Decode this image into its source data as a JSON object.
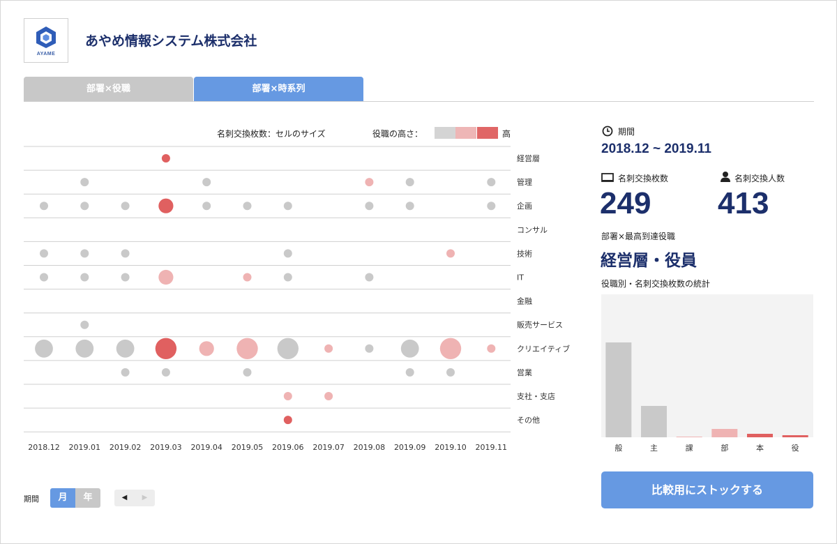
{
  "header": {
    "logo_text": "AYAME",
    "company_name": "あやめ情報システム株式会社"
  },
  "tabs": [
    {
      "label": "部署×役職",
      "active": false
    },
    {
      "label": "部署×時系列",
      "active": true
    }
  ],
  "legend": {
    "size_label": "名刺交換枚数：セルのサイズ",
    "height_label": "役職の高さ：",
    "high_label": "高",
    "colors": [
      "#d4d4d4",
      "#eeb6b6",
      "#e06666"
    ]
  },
  "chart_data": {
    "type": "scatter",
    "x": [
      "2018.12",
      "2019.01",
      "2019.02",
      "2019.03",
      "2019.04",
      "2019.05",
      "2019.06",
      "2019.07",
      "2019.08",
      "2019.09",
      "2019.10",
      "2019.11"
    ],
    "departments": [
      "経営層",
      "管理",
      "企画",
      "コンサル",
      "技術",
      "IT",
      "金融",
      "販売サービス",
      "クリエイティブ",
      "営業",
      "支社・支店",
      "その他"
    ],
    "points": [
      {
        "dept": 0,
        "month": 3,
        "count": 1,
        "level": 3
      },
      {
        "dept": 1,
        "month": 1,
        "count": 1,
        "level": 1
      },
      {
        "dept": 1,
        "month": 4,
        "count": 1,
        "level": 1
      },
      {
        "dept": 1,
        "month": 8,
        "count": 1,
        "level": 2
      },
      {
        "dept": 1,
        "month": 9,
        "count": 1,
        "level": 1
      },
      {
        "dept": 1,
        "month": 11,
        "count": 1,
        "level": 1
      },
      {
        "dept": 2,
        "month": 0,
        "count": 1,
        "level": 1
      },
      {
        "dept": 2,
        "month": 1,
        "count": 1,
        "level": 1
      },
      {
        "dept": 2,
        "month": 2,
        "count": 1,
        "level": 1
      },
      {
        "dept": 2,
        "month": 3,
        "count": 3,
        "level": 3
      },
      {
        "dept": 2,
        "month": 4,
        "count": 1,
        "level": 1
      },
      {
        "dept": 2,
        "month": 5,
        "count": 1,
        "level": 1
      },
      {
        "dept": 2,
        "month": 6,
        "count": 1,
        "level": 1
      },
      {
        "dept": 2,
        "month": 8,
        "count": 1,
        "level": 1
      },
      {
        "dept": 2,
        "month": 9,
        "count": 1,
        "level": 1
      },
      {
        "dept": 2,
        "month": 11,
        "count": 1,
        "level": 1
      },
      {
        "dept": 4,
        "month": 0,
        "count": 1,
        "level": 1
      },
      {
        "dept": 4,
        "month": 1,
        "count": 1,
        "level": 1
      },
      {
        "dept": 4,
        "month": 2,
        "count": 1,
        "level": 1
      },
      {
        "dept": 4,
        "month": 6,
        "count": 1,
        "level": 1
      },
      {
        "dept": 4,
        "month": 10,
        "count": 1,
        "level": 2
      },
      {
        "dept": 5,
        "month": 0,
        "count": 1,
        "level": 1
      },
      {
        "dept": 5,
        "month": 1,
        "count": 1,
        "level": 1
      },
      {
        "dept": 5,
        "month": 2,
        "count": 1,
        "level": 1
      },
      {
        "dept": 5,
        "month": 3,
        "count": 3,
        "level": 2
      },
      {
        "dept": 5,
        "month": 5,
        "count": 1,
        "level": 2
      },
      {
        "dept": 5,
        "month": 6,
        "count": 1,
        "level": 1
      },
      {
        "dept": 5,
        "month": 8,
        "count": 1,
        "level": 1
      },
      {
        "dept": 7,
        "month": 1,
        "count": 1,
        "level": 1
      },
      {
        "dept": 8,
        "month": 0,
        "count": 4,
        "level": 1
      },
      {
        "dept": 8,
        "month": 1,
        "count": 4,
        "level": 1
      },
      {
        "dept": 8,
        "month": 2,
        "count": 4,
        "level": 1
      },
      {
        "dept": 8,
        "month": 3,
        "count": 5,
        "level": 3
      },
      {
        "dept": 8,
        "month": 4,
        "count": 3,
        "level": 2
      },
      {
        "dept": 8,
        "month": 5,
        "count": 5,
        "level": 2
      },
      {
        "dept": 8,
        "month": 6,
        "count": 5,
        "level": 1
      },
      {
        "dept": 8,
        "month": 7,
        "count": 1,
        "level": 2
      },
      {
        "dept": 8,
        "month": 8,
        "count": 1,
        "level": 1
      },
      {
        "dept": 8,
        "month": 9,
        "count": 4,
        "level": 1
      },
      {
        "dept": 8,
        "month": 10,
        "count": 5,
        "level": 2
      },
      {
        "dept": 8,
        "month": 11,
        "count": 1,
        "level": 2
      },
      {
        "dept": 9,
        "month": 2,
        "count": 1,
        "level": 1
      },
      {
        "dept": 9,
        "month": 3,
        "count": 1,
        "level": 1
      },
      {
        "dept": 9,
        "month": 5,
        "count": 1,
        "level": 1
      },
      {
        "dept": 9,
        "month": 9,
        "count": 1,
        "level": 1
      },
      {
        "dept": 9,
        "month": 10,
        "count": 1,
        "level": 1
      },
      {
        "dept": 10,
        "month": 6,
        "count": 1,
        "level": 2
      },
      {
        "dept": 10,
        "month": 7,
        "count": 1,
        "level": 2
      },
      {
        "dept": 11,
        "month": 6,
        "count": 1,
        "level": 3
      }
    ],
    "stats": {
      "type": "bar",
      "categories": [
        "般",
        "主",
        "課",
        "部",
        "本",
        "役"
      ],
      "values": [
        136,
        45,
        1,
        12,
        5,
        3
      ],
      "levels": [
        1,
        1,
        2,
        2,
        3,
        3
      ],
      "ylim": [
        0,
        205
      ]
    }
  },
  "summary": {
    "period_label": "期間",
    "period_value": "2018.12 ~ 2019.11",
    "cards_label": "名刺交換枚数",
    "cards_value": "249",
    "people_label": "名刺交換人数",
    "people_value": "413",
    "top_label": "部署×最高到達役職",
    "top_value": "経営層・役員",
    "stats_label": "役職別・名刺交換枚数の統計",
    "stock_button": "比較用にストックする"
  },
  "controls": {
    "period_label": "期間",
    "month_label": "月",
    "year_label": "年",
    "prev_label": "◀",
    "next_label": "▶"
  }
}
